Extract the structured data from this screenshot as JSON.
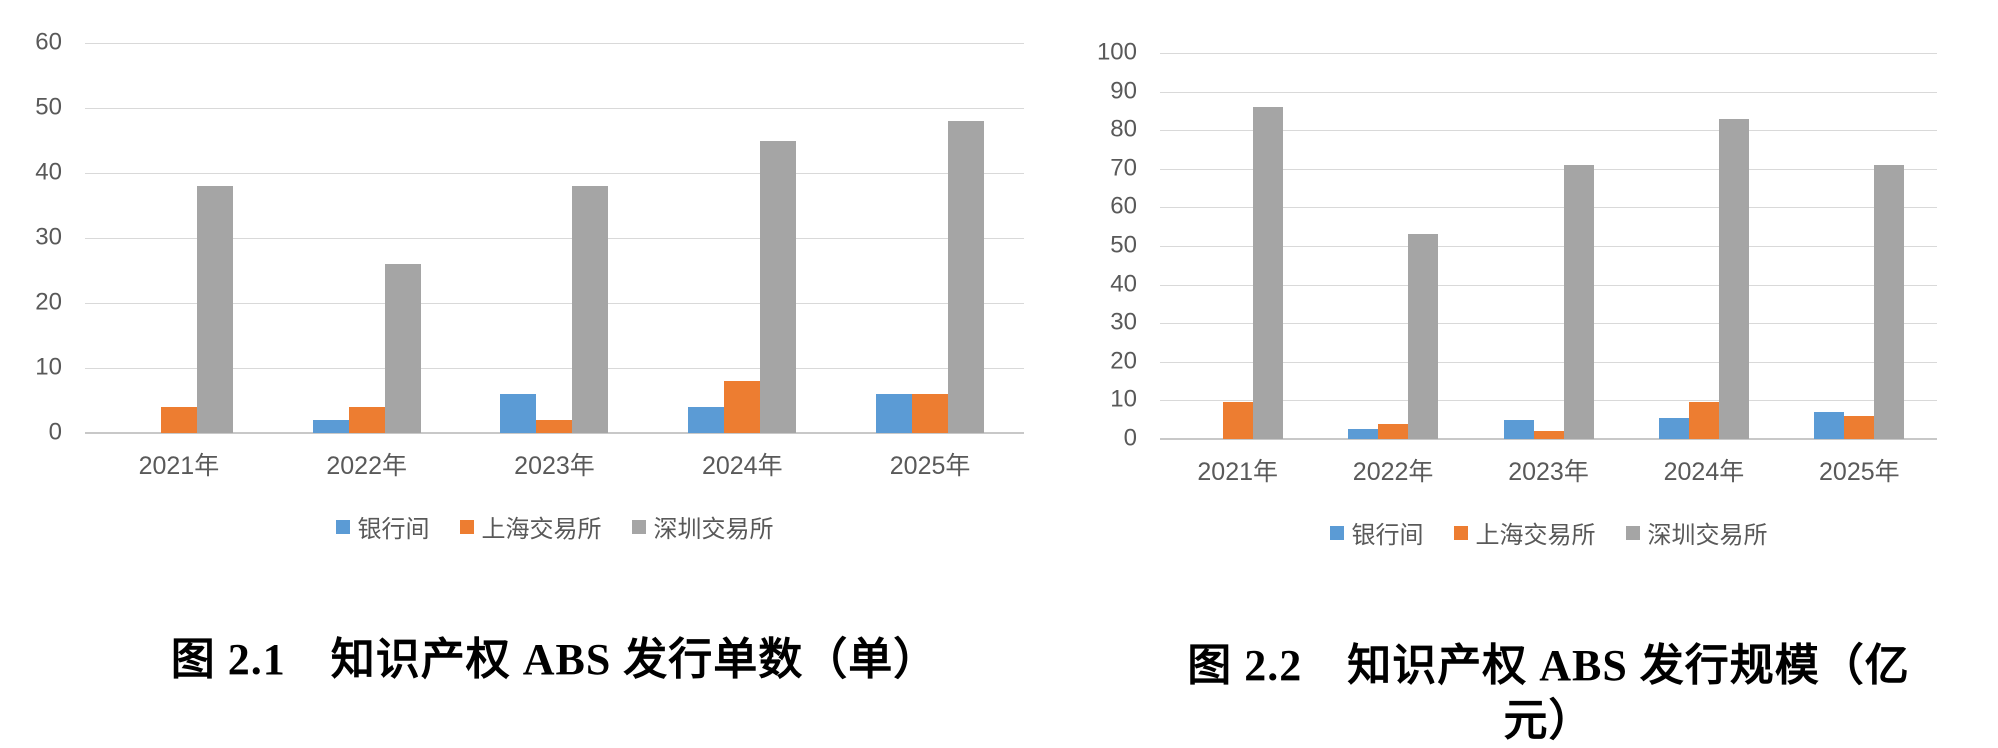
{
  "colors": {
    "series_bank": "#5B9BD5",
    "series_shse": "#ED7D31",
    "series_szse": "#A5A5A5",
    "gridline": "#D9D9D9",
    "axis_line": "#C8C8C8",
    "tick_text": "#595959",
    "caption_text": "#000000"
  },
  "chart_data": [
    {
      "type": "bar",
      "figure_label": "图 2.1",
      "title": "知识产权 ABS 发行单数（单）",
      "caption": "图 2.1　知识产权 ABS 发行单数（单）",
      "categories": [
        "2021年",
        "2022年",
        "2023年",
        "2024年",
        "2025年"
      ],
      "series": [
        {
          "key": "bank",
          "name": "银行间",
          "color": "#5B9BD5",
          "values": [
            0,
            2,
            6,
            4,
            6
          ]
        },
        {
          "key": "shse",
          "name": "上海交易所",
          "color": "#ED7D31",
          "values": [
            4,
            4,
            2,
            8,
            6
          ]
        },
        {
          "key": "szse",
          "name": "深圳交易所",
          "color": "#A5A5A5",
          "values": [
            38,
            26,
            38,
            45,
            48
          ]
        }
      ],
      "xlabel": "",
      "ylabel": "",
      "ylim": [
        0,
        60
      ],
      "ytick_step": 10,
      "grid": true,
      "legend_position": "bottom"
    },
    {
      "type": "bar",
      "figure_label": "图 2.2",
      "title": "知识产权 ABS 发行规模（亿元）",
      "caption": "图 2.2　知识产权 ABS 发行规模（亿元）",
      "categories": [
        "2021年",
        "2022年",
        "2023年",
        "2024年",
        "2025年"
      ],
      "series": [
        {
          "key": "bank",
          "name": "银行间",
          "color": "#5B9BD5",
          "values": [
            0,
            2.5,
            5,
            5.5,
            7
          ]
        },
        {
          "key": "shse",
          "name": "上海交易所",
          "color": "#ED7D31",
          "values": [
            9.5,
            4,
            2,
            9.5,
            6
          ]
        },
        {
          "key": "szse",
          "name": "深圳交易所",
          "color": "#A5A5A5",
          "values": [
            86,
            53,
            71,
            83,
            71
          ]
        }
      ],
      "xlabel": "",
      "ylabel": "",
      "ylim": [
        0,
        100
      ],
      "ytick_step": 10,
      "grid": true,
      "legend_position": "bottom"
    }
  ]
}
